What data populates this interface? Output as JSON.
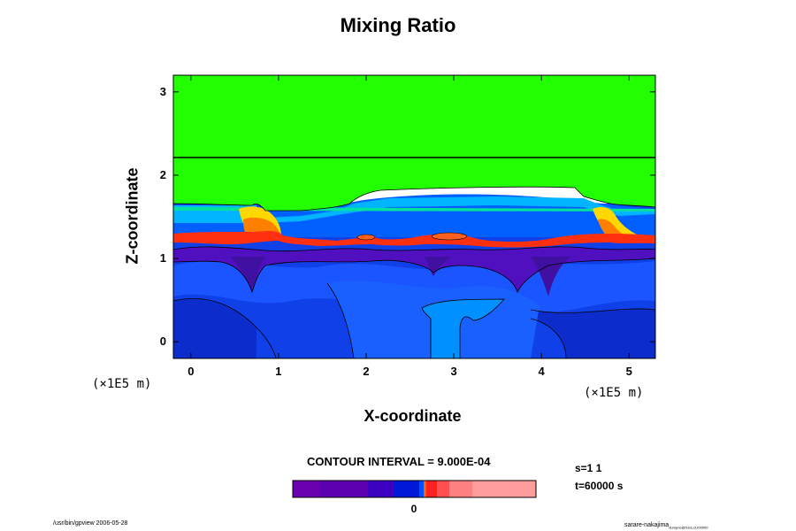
{
  "chart_data": {
    "type": "heatmap",
    "title": "Mixing Ratio",
    "xlabel": "X-coordinate",
    "ylabel": "Z-coordinate",
    "x_unit_left": "(×1E5 m)",
    "x_unit_right": "(×1E5 m)",
    "xlim": [
      -0.2,
      5.3
    ],
    "ylim": [
      -0.2,
      3.2
    ],
    "x_ticks": [
      "0",
      "1",
      "2",
      "3",
      "4",
      "5"
    ],
    "y_ticks": [
      "0",
      "1",
      "2",
      "3"
    ],
    "x_tick_values": [
      0,
      1,
      2,
      3,
      4,
      5
    ],
    "y_tick_values": [
      0,
      1,
      2,
      3
    ],
    "contour_interval": "CONTOUR INTERVAL = 9.000E-04",
    "colorbar_zero_label": "0",
    "colorbar_colors": [
      "#6a00b0",
      "#5c00b0",
      "#3c00c0",
      "#0018d8",
      "#0050ff",
      "#ff6000",
      "#ff2020",
      "#ff5050",
      "#ff8080",
      "#ff9c9c"
    ],
    "field_colors": {
      "upper_layer": "#22ff00",
      "mid_layer": "#0060ff",
      "interface": "#ff3010",
      "lower_layer": "#1040e8",
      "dark_band": "#5010c0",
      "updraft": "#0090ff"
    },
    "step": "s=1 1",
    "time": "t=60000 s",
    "footer_left": "/usr/bin/gpview 2006-05-28",
    "footer_right_main": "sarare-nakajima",
    "footer_right_sub": "dumpnc@fxsrs,ct,t00000"
  }
}
